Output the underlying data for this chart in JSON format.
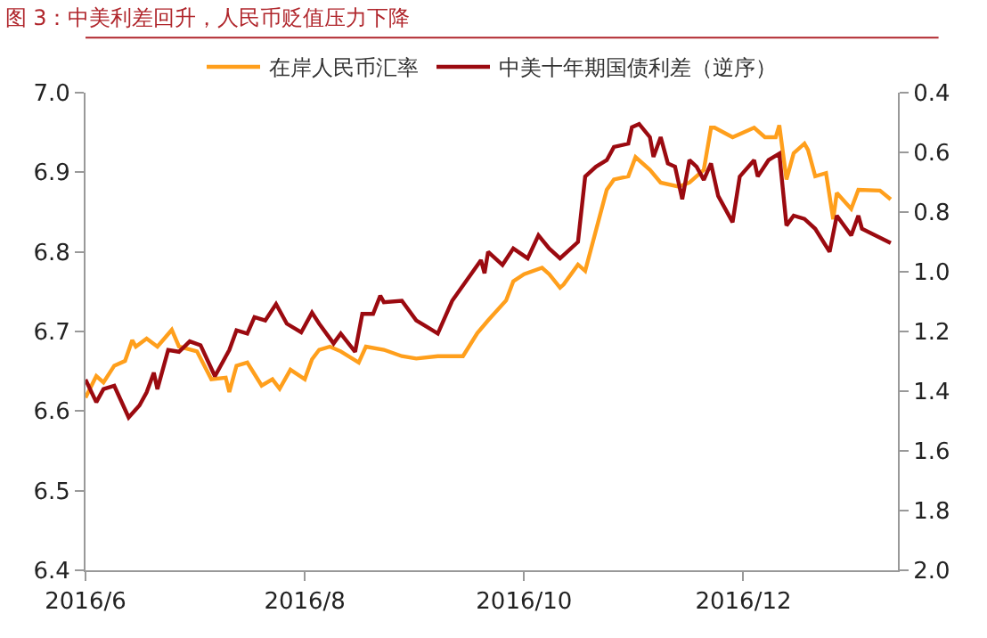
{
  "chart_data": {
    "type": "line",
    "title": "图 3：中美利差回升，人民币贬值压力下降",
    "xlim": [
      "2016-06-01",
      "2017-01-13"
    ],
    "xticks": [
      {
        "value": "2016-06-01",
        "label": "2016/6"
      },
      {
        "value": "2016-08-01",
        "label": "2016/8"
      },
      {
        "value": "2016-10-01",
        "label": "2016/10"
      },
      {
        "value": "2016-12-01",
        "label": "2016/12"
      }
    ],
    "ylim": [
      6.4,
      7.0
    ],
    "yticks": [
      {
        "value": 6.4,
        "label": "6.4"
      },
      {
        "value": 6.5,
        "label": "6.5"
      },
      {
        "value": 6.6,
        "label": "6.6"
      },
      {
        "value": 6.7,
        "label": "6.7"
      },
      {
        "value": 6.8,
        "label": "6.8"
      },
      {
        "value": 6.9,
        "label": "6.9"
      },
      {
        "value": 7.0,
        "label": "7.0"
      }
    ],
    "y2lim": [
      2.0,
      0.4
    ],
    "y2ticks": [
      {
        "value": 0.4,
        "label": "0.4"
      },
      {
        "value": 0.6,
        "label": "0.6"
      },
      {
        "value": 0.8,
        "label": "0.8"
      },
      {
        "value": 1.0,
        "label": "1.0"
      },
      {
        "value": 1.2,
        "label": "1.2"
      },
      {
        "value": 1.4,
        "label": "1.4"
      },
      {
        "value": 1.6,
        "label": "1.6"
      },
      {
        "value": 1.8,
        "label": "1.8"
      },
      {
        "value": 2.0,
        "label": "2.0"
      }
    ],
    "legend": "top",
    "marker": "none",
    "line_style": "solid",
    "series": [
      {
        "name": "在岸人民币汇率",
        "color": "#ff9f1c",
        "x": [
          "2016-06-01",
          "2016-06-04",
          "2016-06-06",
          "2016-06-09",
          "2016-06-12",
          "2016-06-14",
          "2016-06-15",
          "2016-06-18",
          "2016-06-21",
          "2016-06-25",
          "2016-06-27",
          "2016-07-02",
          "2016-07-06",
          "2016-07-10",
          "2016-07-11",
          "2016-07-13",
          "2016-07-16",
          "2016-07-20",
          "2016-07-23",
          "2016-07-25",
          "2016-07-28",
          "2016-08-01",
          "2016-08-03",
          "2016-08-05",
          "2016-08-08",
          "2016-08-11",
          "2016-08-16",
          "2016-08-18",
          "2016-08-23",
          "2016-08-28",
          "2016-09-01",
          "2016-09-07",
          "2016-09-14",
          "2016-09-18",
          "2016-09-21",
          "2016-09-26",
          "2016-09-28",
          "2016-10-01",
          "2016-10-06",
          "2016-10-08",
          "2016-10-11",
          "2016-10-12",
          "2016-10-16",
          "2016-10-18",
          "2016-10-24",
          "2016-10-26",
          "2016-10-30",
          "2016-11-01",
          "2016-11-05",
          "2016-11-08",
          "2016-11-13",
          "2016-11-16",
          "2016-11-20",
          "2016-11-22",
          "2016-11-23",
          "2016-11-28",
          "2016-11-30",
          "2016-12-04",
          "2016-12-07",
          "2016-12-10",
          "2016-12-11",
          "2016-12-13",
          "2016-12-15",
          "2016-12-18",
          "2016-12-19",
          "2016-12-21",
          "2016-12-24",
          "2016-12-26",
          "2016-12-27",
          "2016-12-31",
          "2017-01-02",
          "2017-01-08",
          "2017-01-11"
        ],
        "values": [
          6.617,
          6.644,
          6.636,
          6.657,
          6.663,
          6.689,
          6.681,
          6.691,
          6.681,
          6.702,
          6.681,
          6.675,
          6.64,
          6.642,
          6.624,
          6.657,
          6.661,
          6.632,
          6.64,
          6.628,
          6.652,
          6.64,
          6.665,
          6.677,
          6.681,
          6.675,
          6.661,
          6.681,
          6.677,
          6.669,
          6.666,
          6.669,
          6.669,
          6.698,
          6.714,
          6.739,
          6.763,
          6.772,
          6.78,
          6.772,
          6.755,
          6.759,
          6.784,
          6.776,
          6.878,
          6.891,
          6.895,
          6.919,
          6.903,
          6.887,
          6.882,
          6.887,
          6.903,
          6.956,
          6.956,
          6.944,
          6.948,
          6.956,
          6.944,
          6.944,
          6.959,
          6.891,
          6.924,
          6.936,
          6.928,
          6.895,
          6.899,
          6.841,
          6.874,
          6.854,
          6.878,
          6.877,
          6.866
        ]
      },
      {
        "name": "中美十年期国债利差（逆序）",
        "color": "#9b0a10",
        "axis": "y2",
        "x": [
          "2016-06-01",
          "2016-06-04",
          "2016-06-06",
          "2016-06-09",
          "2016-06-13",
          "2016-06-16",
          "2016-06-18",
          "2016-06-20",
          "2016-06-21",
          "2016-06-24",
          "2016-06-27",
          "2016-06-30",
          "2016-07-03",
          "2016-07-07",
          "2016-07-11",
          "2016-07-13",
          "2016-07-16",
          "2016-07-18",
          "2016-07-21",
          "2016-07-24",
          "2016-07-27",
          "2016-07-31",
          "2016-08-03",
          "2016-08-05",
          "2016-08-09",
          "2016-08-11",
          "2016-08-15",
          "2016-08-17",
          "2016-08-20",
          "2016-08-22",
          "2016-08-23",
          "2016-08-28",
          "2016-09-01",
          "2016-09-04",
          "2016-09-07",
          "2016-09-11",
          "2016-09-19",
          "2016-09-20",
          "2016-09-21",
          "2016-09-25",
          "2016-09-28",
          "2016-10-02",
          "2016-10-05",
          "2016-10-08",
          "2016-10-11",
          "2016-10-13",
          "2016-10-16",
          "2016-10-18",
          "2016-10-21",
          "2016-10-24",
          "2016-10-26",
          "2016-10-30",
          "2016-10-31",
          "2016-11-02",
          "2016-11-05",
          "2016-11-06",
          "2016-11-08",
          "2016-11-10",
          "2016-11-12",
          "2016-11-14",
          "2016-11-16",
          "2016-11-18",
          "2016-11-20",
          "2016-11-22",
          "2016-11-24",
          "2016-11-28",
          "2016-11-30",
          "2016-12-04",
          "2016-12-05",
          "2016-12-08",
          "2016-12-11",
          "2016-12-13",
          "2016-12-15",
          "2016-12-18",
          "2016-12-21",
          "2016-12-25",
          "2016-12-27",
          "2016-12-31",
          "2017-01-02",
          "2017-01-03",
          "2017-01-11"
        ],
        "values": [
          1.361,
          1.437,
          1.393,
          1.382,
          1.488,
          1.448,
          1.404,
          1.338,
          1.393,
          1.262,
          1.268,
          1.233,
          1.246,
          1.35,
          1.262,
          1.196,
          1.207,
          1.152,
          1.163,
          1.108,
          1.174,
          1.203,
          1.137,
          1.174,
          1.24,
          1.207,
          1.268,
          1.141,
          1.141,
          1.08,
          1.102,
          1.097,
          1.163,
          1.185,
          1.207,
          1.097,
          0.961,
          1.005,
          0.933,
          0.977,
          0.922,
          0.955,
          0.878,
          0.922,
          0.955,
          0.933,
          0.9,
          0.681,
          0.648,
          0.626,
          0.582,
          0.571,
          0.516,
          0.505,
          0.549,
          0.615,
          0.549,
          0.637,
          0.648,
          0.757,
          0.626,
          0.648,
          0.692,
          0.637,
          0.746,
          0.834,
          0.681,
          0.626,
          0.681,
          0.626,
          0.604,
          0.845,
          0.812,
          0.823,
          0.856,
          0.933,
          0.812,
          0.878,
          0.812,
          0.856,
          0.904
        ]
      }
    ]
  }
}
